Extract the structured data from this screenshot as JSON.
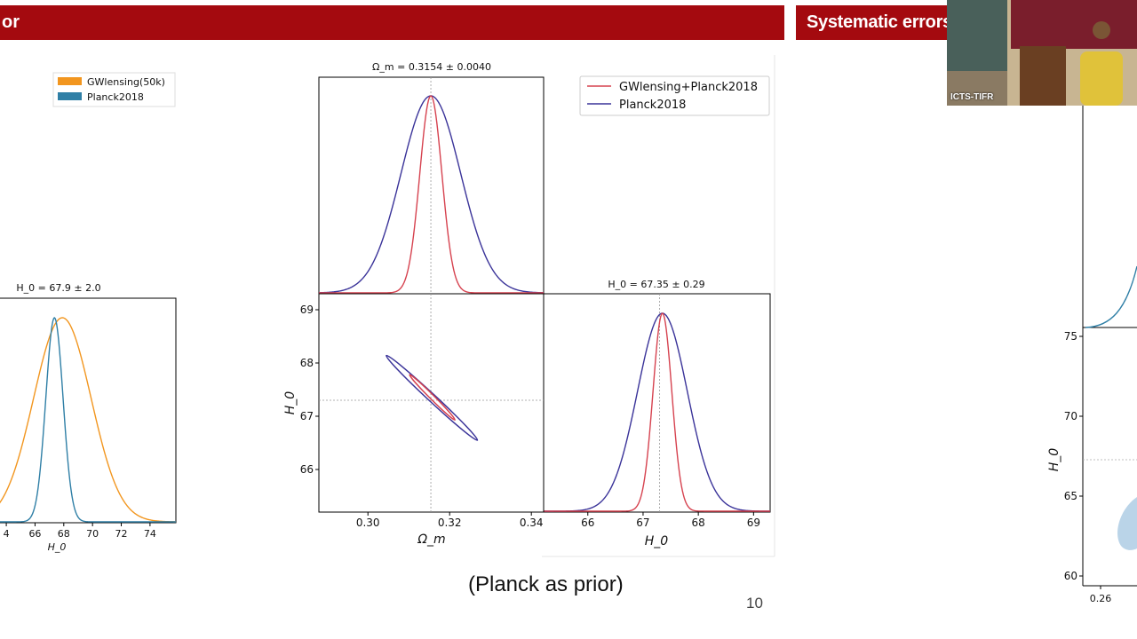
{
  "slide": {
    "left_title_fragment": "or",
    "right_title_fragment": "Systematic errors",
    "caption": "(Planck as prior)",
    "page_number": "10"
  },
  "webcam": {
    "label": "ICTS-TIFR"
  },
  "colors": {
    "banner": "#a40a0f",
    "gwlensing": "#d6424f",
    "planck_corner": "#3a3399",
    "gwlensing50k": "#f2961f",
    "planck_left": "#2f7fa6",
    "right_fill": "#bad4e8"
  },
  "chart_data": [
    {
      "id": "left-plot",
      "type": "line",
      "title": "H_0 = 67.9 ± 2.0",
      "xlabel": "H_0",
      "xlim": [
        63.5,
        75.8
      ],
      "xticks": [
        "4",
        "66",
        "68",
        "70",
        "72",
        "74"
      ],
      "legend": {
        "placement": "top-left",
        "entries": [
          "GWlensing(50k)",
          "Planck2018"
        ]
      },
      "series": [
        {
          "name": "GWlensing(50k)",
          "kind": "gaussian",
          "mean": 67.9,
          "sigma": 2.0
        },
        {
          "name": "Planck2018",
          "kind": "gaussian",
          "mean": 67.35,
          "sigma": 0.6
        }
      ]
    },
    {
      "id": "corner-plot",
      "type": "line",
      "legend": {
        "placement": "top-right",
        "entries": [
          "GWlensing+Planck2018",
          "Planck2018"
        ]
      },
      "omega_panel": {
        "title": "Ω_m = 0.3154 ± 0.0040",
        "xlabel": "Ω_m",
        "xlim": [
          0.288,
          0.343
        ],
        "xticks": [
          "0.30",
          "0.32",
          "0.34"
        ],
        "reference": 0.3154,
        "series": [
          {
            "name": "GWlensing+Planck2018",
            "kind": "gaussian",
            "mean": 0.3154,
            "sigma": 0.0027
          },
          {
            "name": "Planck2018",
            "kind": "gaussian",
            "mean": 0.3154,
            "sigma": 0.0073
          }
        ]
      },
      "h0_panel": {
        "title": "H_0 = 67.35 ± 0.29",
        "xlabel": "H_0",
        "xlim": [
          65.2,
          69.3
        ],
        "xticks": [
          "66",
          "67",
          "68",
          "69"
        ],
        "reference": 67.3,
        "series": [
          {
            "name": "GWlensing+Planck2018",
            "kind": "gaussian",
            "mean": 67.35,
            "sigma": 0.17
          },
          {
            "name": "Planck2018",
            "kind": "gaussian",
            "mean": 67.35,
            "sigma": 0.45
          }
        ]
      },
      "joint_panel": {
        "xlabel": "Ω_m",
        "ylabel": "H_0",
        "xlim": [
          0.288,
          0.343
        ],
        "ylim": [
          65.2,
          69.3
        ],
        "xticks": [
          "0.30",
          "0.32",
          "0.34"
        ],
        "yticks": [
          "66",
          "67",
          "68",
          "69"
        ],
        "reference": {
          "x": 0.3154,
          "y": 67.3
        },
        "contours": [
          {
            "name": "Planck2018",
            "center": [
              0.3159,
              67.33
            ],
            "end_a": [
              0.3045,
              68.14
            ],
            "end_b": [
              0.3268,
              66.55
            ]
          },
          {
            "name": "GWlensing+Planck2018",
            "center": [
              0.316,
              67.35
            ],
            "end_a": [
              0.3102,
              67.78
            ],
            "end_b": [
              0.3213,
              66.93
            ]
          }
        ]
      }
    },
    {
      "id": "right-plot",
      "type": "area",
      "ylabel": "H_0",
      "yticks": [
        "75",
        "70",
        "65",
        "60"
      ],
      "xticks": [
        "0.26"
      ],
      "ylim": [
        59.5,
        76.5
      ]
    }
  ]
}
